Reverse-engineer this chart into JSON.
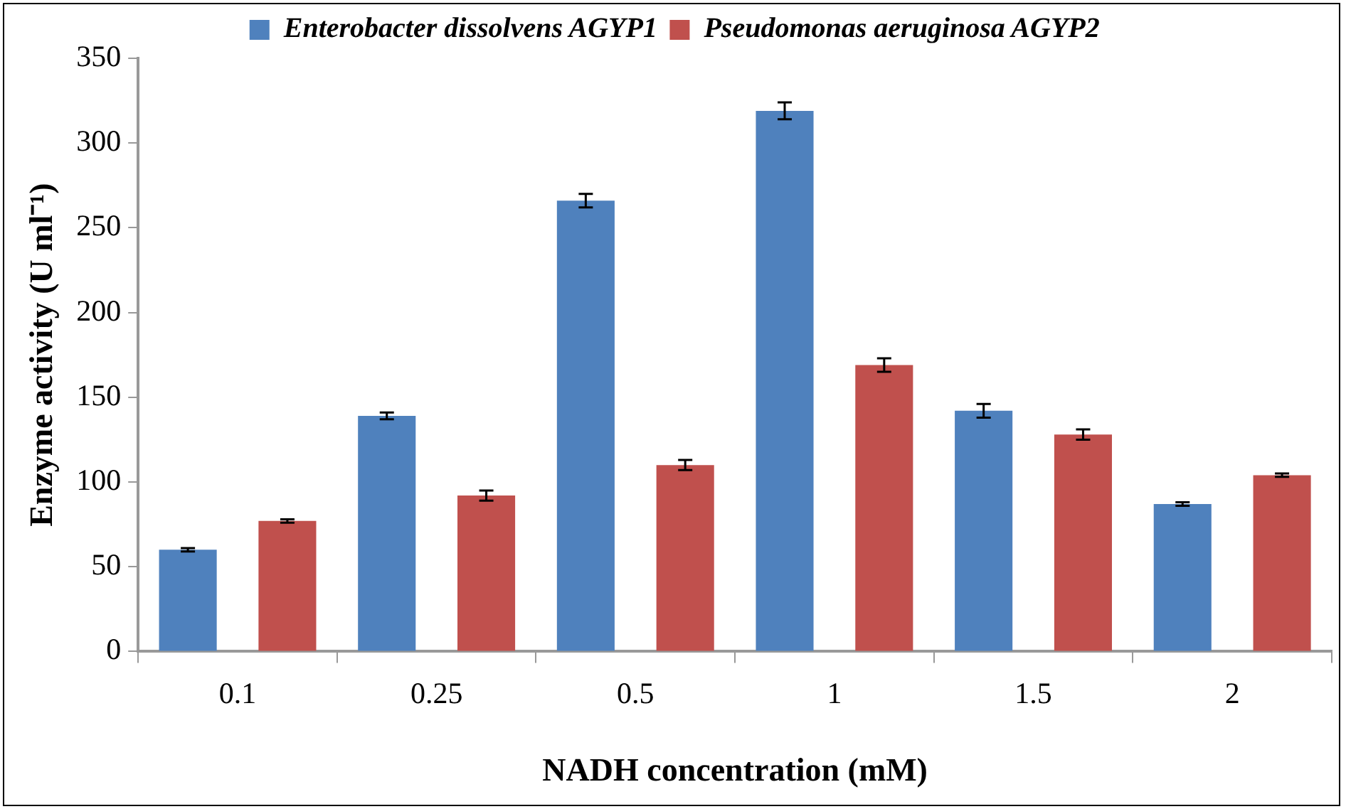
{
  "chart_data": {
    "type": "bar",
    "xlabel": "NADH concentration (mM)",
    "ylabel": "Enzyme activity (U ml⁻¹)",
    "categories": [
      "0.1",
      "0.25",
      "0.5",
      "1",
      "1.5",
      "2"
    ],
    "series": [
      {
        "name": "Enterobacter dissolvens AGYP1",
        "color": "#4f81bd",
        "values": [
          60,
          139,
          266,
          319,
          142,
          87
        ],
        "errors": [
          1,
          2,
          4,
          5,
          4,
          1
        ]
      },
      {
        "name": "Pseudomonas aeruginosa AGYP2",
        "color": "#c0504d",
        "values": [
          77,
          92,
          110,
          169,
          128,
          104
        ],
        "errors": [
          1,
          3,
          3,
          4,
          3,
          1
        ]
      }
    ],
    "ylim": [
      0,
      350
    ],
    "yticks": [
      0,
      50,
      100,
      150,
      200,
      250,
      300,
      350
    ],
    "grid": false,
    "legend": "top"
  }
}
